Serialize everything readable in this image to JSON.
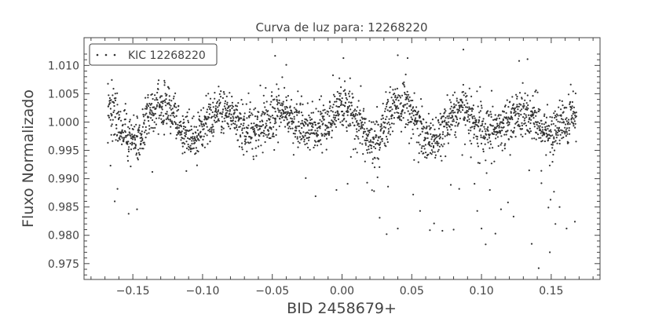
{
  "chart_data": {
    "type": "scatter",
    "title": "Curva de luz para: 12268220",
    "xlabel": "BID 2458679+",
    "ylabel": "Fluxo Normalizado",
    "xlim": [
      -0.185,
      0.185
    ],
    "ylim": [
      0.9722,
      1.0149
    ],
    "xticks": [
      -0.15,
      -0.1,
      -0.05,
      0.0,
      0.05,
      0.1,
      0.15
    ],
    "xtick_labels": [
      "−0.15",
      "−0.10",
      "−0.05",
      "0.00",
      "0.05",
      "0.10",
      "0.15"
    ],
    "yticks": [
      0.975,
      0.98,
      0.985,
      0.99,
      0.995,
      1.0,
      1.005,
      1.01
    ],
    "ytick_labels": [
      "0.975",
      "0.980",
      "0.985",
      "0.990",
      "0.995",
      "1.000",
      "1.005",
      "1.010"
    ],
    "grid": false,
    "legend": {
      "position": "top-left",
      "entries": [
        "KIC 12268220"
      ]
    },
    "colors": {
      "points": "#333333",
      "axes": "#444444"
    },
    "series": [
      {
        "name": "KIC 12268220",
        "x_range": [
          -0.168,
          0.168
        ],
        "n_points": 2400,
        "baseline": 1.0,
        "oscillation_amplitude": 0.0026,
        "oscillation_period": 0.043,
        "oscillation_peaks_x": [
          -0.128,
          -0.085,
          -0.045,
          0.0,
          0.045,
          0.085,
          0.128
        ],
        "scatter_sigma": 0.0021,
        "outliers": [
          {
            "x": -0.166,
            "y": 0.9923
          },
          {
            "x": -0.163,
            "y": 0.986
          },
          {
            "x": -0.161,
            "y": 0.9882
          },
          {
            "x": -0.153,
            "y": 0.9838
          },
          {
            "x": -0.147,
            "y": 0.9846
          },
          {
            "x": -0.136,
            "y": 0.9912
          },
          {
            "x": -0.048,
            "y": 1.0117
          },
          {
            "x": -0.04,
            "y": 1.0101
          },
          {
            "x": -0.026,
            "y": 0.9901
          },
          {
            "x": -0.019,
            "y": 0.9869
          },
          {
            "x": -0.004,
            "y": 0.988
          },
          {
            "x": 0.001,
            "y": 1.0113
          },
          {
            "x": 0.004,
            "y": 0.9891
          },
          {
            "x": 0.018,
            "y": 0.9893
          },
          {
            "x": 0.023,
            "y": 0.9878
          },
          {
            "x": 0.027,
            "y": 0.9831
          },
          {
            "x": 0.032,
            "y": 0.9802
          },
          {
            "x": 0.033,
            "y": 0.9886
          },
          {
            "x": 0.04,
            "y": 0.9812
          },
          {
            "x": 0.04,
            "y": 1.0118
          },
          {
            "x": 0.047,
            "y": 1.0113
          },
          {
            "x": 0.051,
            "y": 0.9872
          },
          {
            "x": 0.056,
            "y": 0.9843
          },
          {
            "x": 0.063,
            "y": 0.9809
          },
          {
            "x": 0.066,
            "y": 0.9821
          },
          {
            "x": 0.072,
            "y": 0.9808
          },
          {
            "x": 0.078,
            "y": 0.9889
          },
          {
            "x": 0.08,
            "y": 0.981
          },
          {
            "x": 0.084,
            "y": 0.9882
          },
          {
            "x": 0.087,
            "y": 1.0128
          },
          {
            "x": 0.095,
            "y": 0.9891
          },
          {
            "x": 0.097,
            "y": 0.9843
          },
          {
            "x": 0.1,
            "y": 0.9812
          },
          {
            "x": 0.103,
            "y": 0.9784
          },
          {
            "x": 0.106,
            "y": 0.988
          },
          {
            "x": 0.11,
            "y": 0.9803
          },
          {
            "x": 0.114,
            "y": 0.9846
          },
          {
            "x": 0.119,
            "y": 0.9858
          },
          {
            "x": 0.123,
            "y": 0.9833
          },
          {
            "x": 0.127,
            "y": 1.0108
          },
          {
            "x": 0.133,
            "y": 1.0111
          },
          {
            "x": 0.136,
            "y": 0.9785
          },
          {
            "x": 0.141,
            "y": 0.9742
          },
          {
            "x": 0.148,
            "y": 0.9849
          },
          {
            "x": 0.149,
            "y": 0.977
          },
          {
            "x": 0.153,
            "y": 0.982
          },
          {
            "x": 0.156,
            "y": 0.985
          },
          {
            "x": 0.161,
            "y": 0.9812
          },
          {
            "x": 0.167,
            "y": 0.9824
          },
          {
            "x": 0.152,
            "y": 0.9877
          },
          {
            "x": 0.143,
            "y": 0.9892
          }
        ]
      }
    ]
  }
}
